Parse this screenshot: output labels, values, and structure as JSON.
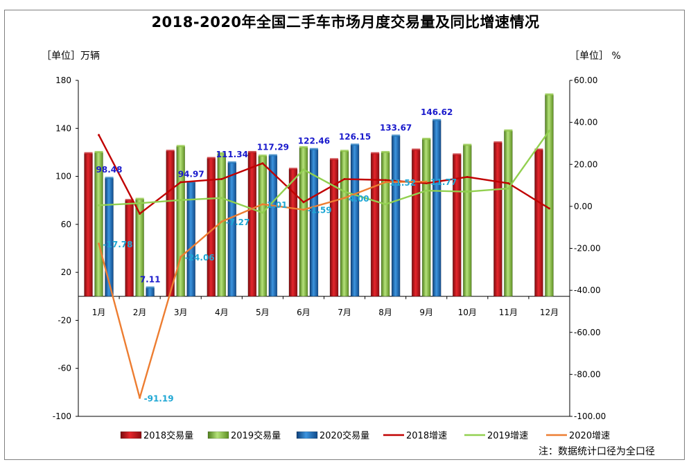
{
  "chart_data": {
    "type": "bar",
    "title": "2018-2020年全国二手车市场月度交易量及同比增速情况",
    "ylabel_left": "［单位］万辆",
    "ylabel_right": "［单位］ %",
    "note": "注：数据统计口径为全口径",
    "categories": [
      "1月",
      "2月",
      "3月",
      "4月",
      "5月",
      "6月",
      "7月",
      "8月",
      "9月",
      "10月",
      "11月",
      "12月"
    ],
    "y_left": {
      "ylim": [
        -100,
        180
      ],
      "ticks": [
        "180",
        "140",
        "100",
        "60",
        "20",
        "-20",
        "-60",
        "-100"
      ]
    },
    "y_right": {
      "ylim": [
        -100,
        60
      ],
      "ticks": [
        "60.00",
        "40.00",
        "20.00",
        "0.00",
        "-20.00",
        "-40.00",
        "-60.00",
        "-80.00",
        "-100.00"
      ]
    },
    "series": [
      {
        "name": "2018交易量",
        "kind": "bar",
        "color": "#c0151b",
        "values": [
          119,
          80,
          121,
          115,
          120,
          106,
          114,
          119,
          122,
          118,
          128,
          122
        ]
      },
      {
        "name": "2019交易量",
        "kind": "bar",
        "color": "#8cc63e",
        "values": [
          120,
          81,
          125,
          119,
          117,
          124,
          121,
          120,
          131,
          126,
          138,
          168
        ]
      },
      {
        "name": "2020交易量",
        "kind": "bar",
        "color": "#1d75bc",
        "values": [
          98.48,
          7.11,
          94.97,
          111.34,
          117.29,
          122.46,
          126.15,
          133.67,
          146.62,
          null,
          null,
          null
        ],
        "labels": [
          "98.48",
          "7.11",
          "94.97",
          "111.34",
          "117.29",
          "122.46",
          "126.15",
          "133.67",
          "146.62",
          "",
          "",
          ""
        ]
      },
      {
        "name": "2018增速",
        "kind": "line",
        "color": "#c00000",
        "values": [
          34,
          -3.5,
          11.5,
          13,
          20.5,
          2,
          13,
          12.5,
          11,
          14,
          11,
          -1
        ]
      },
      {
        "name": "2019增速",
        "kind": "line",
        "color": "#92d050",
        "values": [
          0.5,
          1.5,
          3,
          4,
          -3,
          17.5,
          7,
          1,
          7.5,
          7,
          8.5,
          36
        ]
      },
      {
        "name": "2020增速",
        "kind": "line",
        "color": "#ed7d31",
        "values": [
          -17.78,
          -91.19,
          -24.06,
          -7.27,
          1.01,
          -1.59,
          4.0,
          11.52,
          11.77,
          null,
          null,
          null
        ],
        "labels": [
          "-17.78",
          "-91.19",
          "-24.06",
          "-7.27",
          "1.01",
          "-1.59",
          "4.00",
          "11.52",
          "11.77",
          "",
          "",
          ""
        ]
      }
    ],
    "legend_position": "bottom",
    "grid": false
  },
  "colors": {
    "bar_label": "#1a1acc",
    "line_label": "#1fa7d4"
  }
}
